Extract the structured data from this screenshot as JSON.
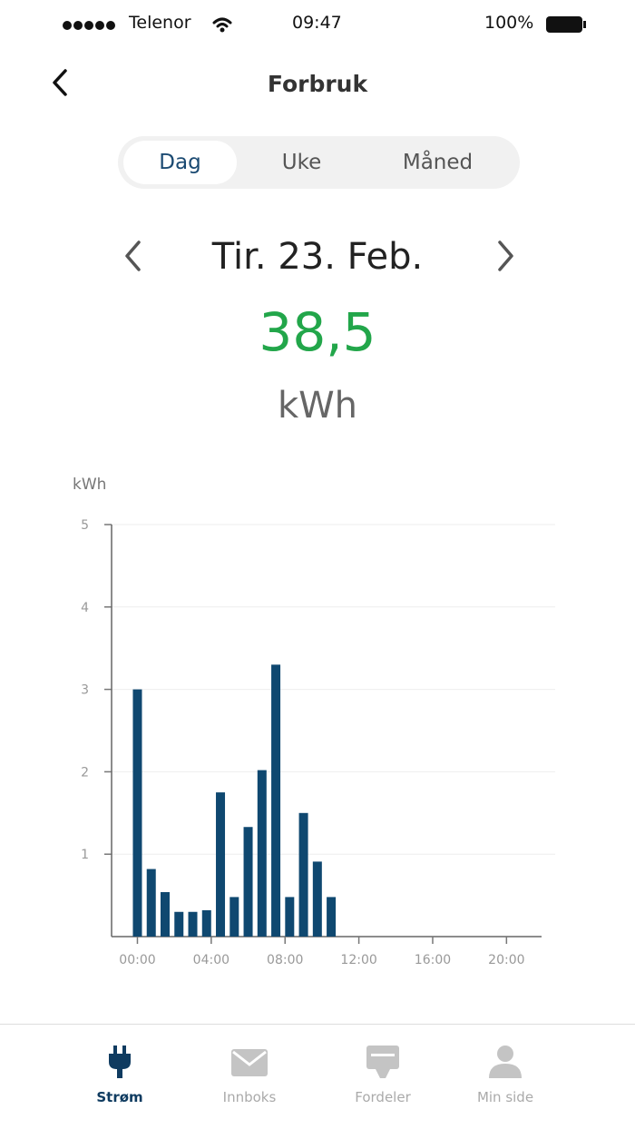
{
  "status_bar": {
    "carrier": "Telenor",
    "time": "09:47",
    "battery": "100%"
  },
  "header": {
    "title": "Forbruk"
  },
  "tabs": [
    "Dag",
    "Uke",
    "Måned"
  ],
  "date": "Tir. 23. Feb.",
  "total": {
    "value": "38,5",
    "unit": "kWh"
  },
  "chart_data": {
    "type": "bar",
    "y_label": "kWh",
    "color": "#0f4870",
    "x": [
      0,
      0.75,
      1.5,
      2.25,
      3,
      3.75,
      4.5,
      5.25,
      6,
      6.75,
      7.5,
      8.25,
      9,
      9.75,
      10.5
    ],
    "values": [
      3.0,
      0.82,
      0.54,
      0.3,
      0.3,
      0.32,
      1.75,
      0.48,
      1.33,
      2.02,
      3.3,
      0.48,
      1.5,
      0.91,
      0.48
    ],
    "xlim": [
      -1.4,
      21.9
    ],
    "xticks": [
      {
        "value": 0,
        "label": "00:00"
      },
      {
        "value": 4,
        "label": "04:00"
      },
      {
        "value": 8,
        "label": "08:00"
      },
      {
        "value": 12,
        "label": "12:00"
      },
      {
        "value": 16,
        "label": "16:00"
      },
      {
        "value": 20,
        "label": "20:00"
      }
    ],
    "ylim": [
      0,
      5
    ],
    "yticks": [
      1,
      2,
      3,
      4,
      5
    ],
    "grid": true
  },
  "nav_items": [
    "Strøm",
    "Innboks",
    "Fordeler",
    "Min side"
  ]
}
